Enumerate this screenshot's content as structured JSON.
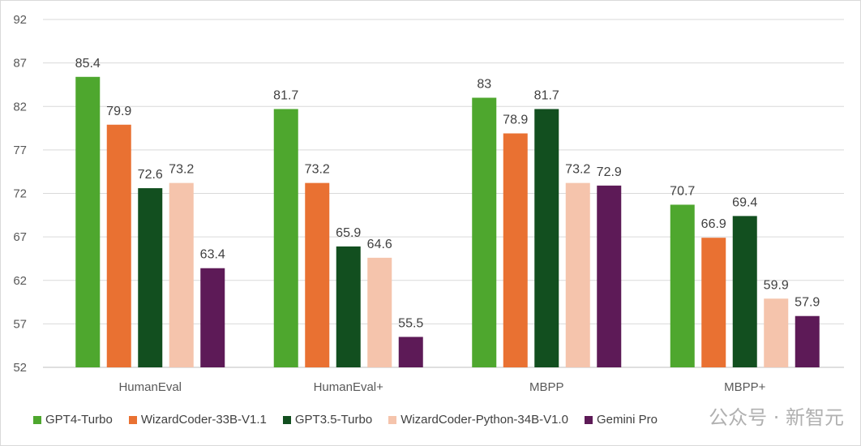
{
  "chart_data": {
    "type": "bar",
    "categories": [
      "HumanEval",
      "HumanEval+",
      "MBPP",
      "MBPP+"
    ],
    "series": [
      {
        "name": "GPT4-Turbo",
        "color": "#4ea72e",
        "values": [
          85.4,
          81.7,
          83,
          70.7
        ]
      },
      {
        "name": "WizardCoder-33B-V1.1",
        "color": "#e97132",
        "values": [
          79.9,
          73.2,
          78.9,
          66.9
        ]
      },
      {
        "name": "GPT3.5-Turbo",
        "color": "#124f1f",
        "values": [
          72.6,
          65.9,
          81.7,
          69.4
        ]
      },
      {
        "name": "WizardCoder-Python-34B-V1.0",
        "color": "#f5c4ac",
        "values": [
          73.2,
          64.6,
          73.2,
          59.9
        ]
      },
      {
        "name": "Gemini Pro",
        "color": "#5d1a57",
        "values": [
          63.4,
          55.5,
          72.9,
          57.9
        ]
      }
    ],
    "yticks": [
      52,
      57,
      62,
      67,
      72,
      77,
      82,
      87,
      92
    ],
    "ylim": [
      52,
      92
    ],
    "grid": true,
    "legend": "bottom"
  },
  "watermark": "公众号 · 新智元"
}
